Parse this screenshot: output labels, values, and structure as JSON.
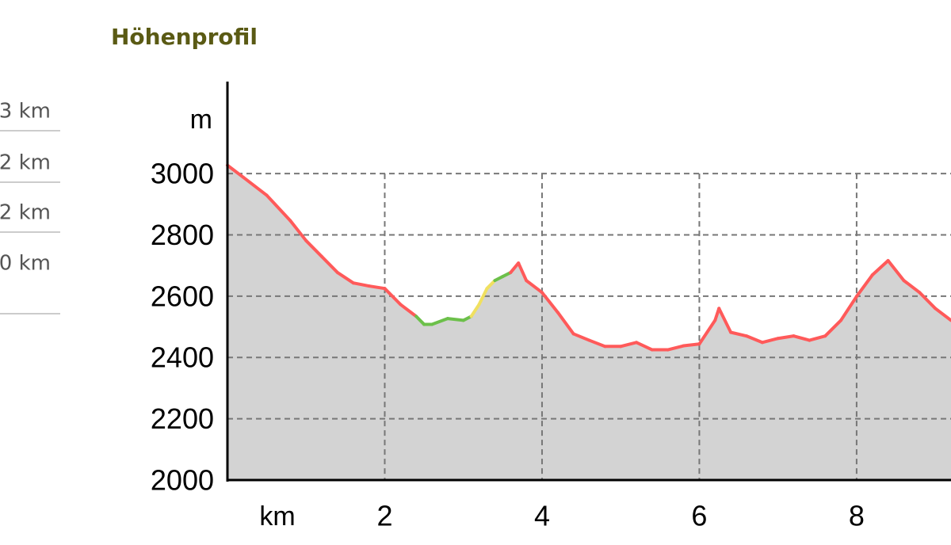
{
  "title": "Höhenprofil",
  "side_list": [
    "3 km",
    "2 km",
    "2 km",
    "0 km"
  ],
  "chart_data": {
    "type": "area",
    "y_label": "m",
    "x_label": "km",
    "x": [
      0,
      0.2,
      0.5,
      0.8,
      1.0,
      1.2,
      1.4,
      1.6,
      1.8,
      2.0,
      2.2,
      2.4,
      2.5,
      2.6,
      2.8,
      3.0,
      3.1,
      3.2,
      3.3,
      3.4,
      3.5,
      3.6,
      3.7,
      3.8,
      4.0,
      4.2,
      4.4,
      4.6,
      4.8,
      5.0,
      5.2,
      5.4,
      5.6,
      5.8,
      6.0,
      6.2,
      6.25,
      6.4,
      6.6,
      6.8,
      7.0,
      7.2,
      7.4,
      7.6,
      7.8,
      8.0,
      8.2,
      8.4,
      8.6,
      8.8,
      9.0,
      9.2
    ],
    "series": [
      {
        "color": "#ff5a5a",
        "fill": "#d3d3d3",
        "values": [
          3027,
          2988,
          2929,
          2846,
          2781,
          2729,
          2677,
          2643,
          2633,
          2625,
          2573,
          2534,
          2508,
          2508,
          2527,
          2521,
          2534,
          2573,
          2625,
          2651,
          2664,
          2677,
          2708,
          2651,
          2612,
          2547,
          2477,
          2456,
          2436,
          2436,
          2449,
          2425,
          2425,
          2438,
          2444,
          2521,
          2560,
          2482,
          2470,
          2449,
          2462,
          2470,
          2456,
          2470,
          2521,
          2599,
          2669,
          2716,
          2651,
          2612,
          2560,
          2521
        ],
        "segment_colors": [
          "#ff5a5a",
          "#ff5a5a",
          "#ff5a5a",
          "#ff5a5a",
          "#ff5a5a",
          "#ff5a5a",
          "#ff5a5a",
          "#ff5a5a",
          "#ff5a5a",
          "#ff5a5a",
          "#ff5a5a",
          "#6cc04a",
          "#6cc04a",
          "#6cc04a",
          "#6cc04a",
          "#6cc04a",
          "#f0e060",
          "#f0e060",
          "#f0e060",
          "#6cc04a",
          "#6cc04a",
          "#ff5a5a",
          "#ff5a5a",
          "#ff5a5a",
          "#ff5a5a",
          "#ff5a5a",
          "#ff5a5a",
          "#ff5a5a",
          "#ff5a5a",
          "#ff5a5a",
          "#ff5a5a",
          "#ff5a5a",
          "#ff5a5a",
          "#ff5a5a",
          "#ff5a5a",
          "#ff5a5a",
          "#ff5a5a",
          "#ff5a5a",
          "#ff5a5a",
          "#ff5a5a",
          "#ff5a5a",
          "#ff5a5a",
          "#ff5a5a",
          "#ff5a5a",
          "#ff5a5a",
          "#ff5a5a",
          "#ff5a5a",
          "#ff5a5a",
          "#ff5a5a",
          "#ff5a5a",
          "#ff5a5a",
          "#ff5a5a"
        ]
      }
    ],
    "xlim": [
      0,
      9.2
    ],
    "ylim": [
      2000,
      3300
    ],
    "xticks": [
      2,
      4,
      6,
      8
    ],
    "yticks": [
      2000,
      2200,
      2400,
      2600,
      2800,
      3000
    ],
    "grid": true
  }
}
